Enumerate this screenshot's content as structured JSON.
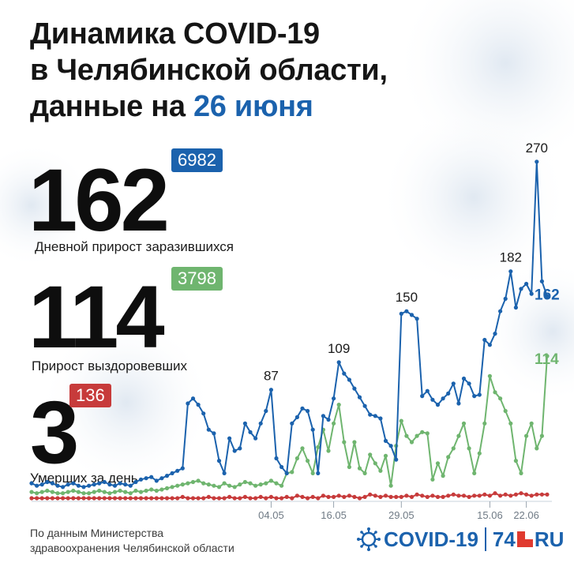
{
  "title": {
    "line1": "Динамика COVID-19",
    "line2": "в Челябинской области,",
    "line3_prefix": "данные на ",
    "line3_date": "26 июня"
  },
  "stats": {
    "infected": {
      "value": "162",
      "total": "6982",
      "label": "Дневной прирост заразившихся",
      "color": "#1b62ad"
    },
    "recovered": {
      "value": "114",
      "total": "3798",
      "label": "Прирост выздоровевших",
      "color": "#6fb56f"
    },
    "deaths": {
      "value": "3",
      "total": "136",
      "label": "Умерших за день",
      "color": "#c73b3b"
    }
  },
  "footer": {
    "source_line1": "По данным Министерства",
    "source_line2": "здравоохранения Челябинской области"
  },
  "brand": {
    "covid": "COVID-19",
    "num": "74",
    "ru": "RU",
    "accent": "#1b62ad",
    "logo_red": "#e03a2f"
  },
  "chart_data": {
    "type": "line",
    "title": "",
    "x_ticks": [
      "04.05",
      "16.05",
      "29.05",
      "15.06",
      "22.06"
    ],
    "x_tick_index": [
      46,
      58,
      71,
      88,
      95
    ],
    "series": [
      {
        "key": "infected",
        "color": "#1b62ad",
        "values": [
          12,
          10,
          11,
          13,
          12,
          10,
          9,
          11,
          12,
          10,
          9,
          10,
          11,
          12,
          13,
          11,
          10,
          12,
          11,
          10,
          13,
          15,
          16,
          17,
          14,
          16,
          18,
          20,
          22,
          24,
          76,
          80,
          75,
          68,
          55,
          52,
          30,
          20,
          48,
          38,
          40,
          60,
          53,
          48,
          60,
          70,
          87,
          32,
          25,
          20,
          60,
          65,
          72,
          70,
          55,
          20,
          66,
          63,
          80,
          109,
          100,
          95,
          88,
          81,
          74,
          67,
          66,
          64,
          46,
          42,
          31,
          148,
          150,
          147,
          144,
          82,
          86,
          79,
          75,
          80,
          84,
          92,
          76,
          96,
          92,
          82,
          83,
          127,
          123,
          132,
          150,
          160,
          182,
          153,
          168,
          172,
          164,
          270,
          174,
          162
        ]
      },
      {
        "key": "recovered",
        "color": "#6fb56f",
        "values": [
          5,
          4,
          5,
          6,
          5,
          4,
          4,
          5,
          6,
          5,
          4,
          4,
          5,
          6,
          5,
          4,
          5,
          6,
          5,
          4,
          6,
          5,
          6,
          7,
          6,
          7,
          8,
          9,
          10,
          11,
          12,
          13,
          14,
          12,
          11,
          10,
          9,
          12,
          10,
          9,
          11,
          13,
          12,
          10,
          11,
          12,
          14,
          12,
          10,
          20,
          21,
          32,
          40,
          30,
          20,
          41,
          55,
          38,
          60,
          75,
          45,
          25,
          45,
          24,
          20,
          35,
          28,
          22,
          34,
          10,
          42,
          62,
          50,
          45,
          50,
          53,
          52,
          15,
          28,
          18,
          33,
          40,
          50,
          60,
          40,
          20,
          36,
          60,
          98,
          85,
          80,
          70,
          60,
          30,
          20,
          50,
          60,
          40,
          50,
          114
        ]
      },
      {
        "key": "deaths",
        "color": "#c73b3b",
        "values": [
          0,
          0,
          0,
          0,
          0,
          0,
          0,
          0,
          0,
          0,
          0,
          0,
          0,
          0,
          0,
          0,
          0,
          0,
          0,
          0,
          0,
          0,
          0,
          0,
          0,
          0,
          0,
          0,
          0,
          1,
          0,
          0,
          0,
          0,
          1,
          0,
          0,
          0,
          1,
          0,
          0,
          1,
          0,
          0,
          1,
          0,
          1,
          0,
          0,
          1,
          0,
          2,
          1,
          0,
          1,
          0,
          2,
          1,
          1,
          2,
          1,
          2,
          1,
          0,
          1,
          3,
          2,
          1,
          2,
          1,
          1,
          1,
          2,
          1,
          3,
          2,
          1,
          2,
          1,
          1,
          2,
          3,
          2,
          2,
          1,
          2,
          2,
          3,
          2,
          4,
          2,
          3,
          2,
          3,
          4,
          3,
          2,
          3,
          3,
          3
        ]
      }
    ],
    "peak_labels": [
      {
        "index": 46,
        "text": "87"
      },
      {
        "index": 59,
        "text": "109"
      },
      {
        "index": 72,
        "text": "150"
      },
      {
        "index": 92,
        "text": "182"
      },
      {
        "index": 97,
        "text": "270"
      }
    ],
    "end_labels": [
      {
        "series": 0,
        "text": "162"
      },
      {
        "series": 1,
        "text": "114"
      }
    ],
    "ylim": [
      0,
      280
    ]
  }
}
